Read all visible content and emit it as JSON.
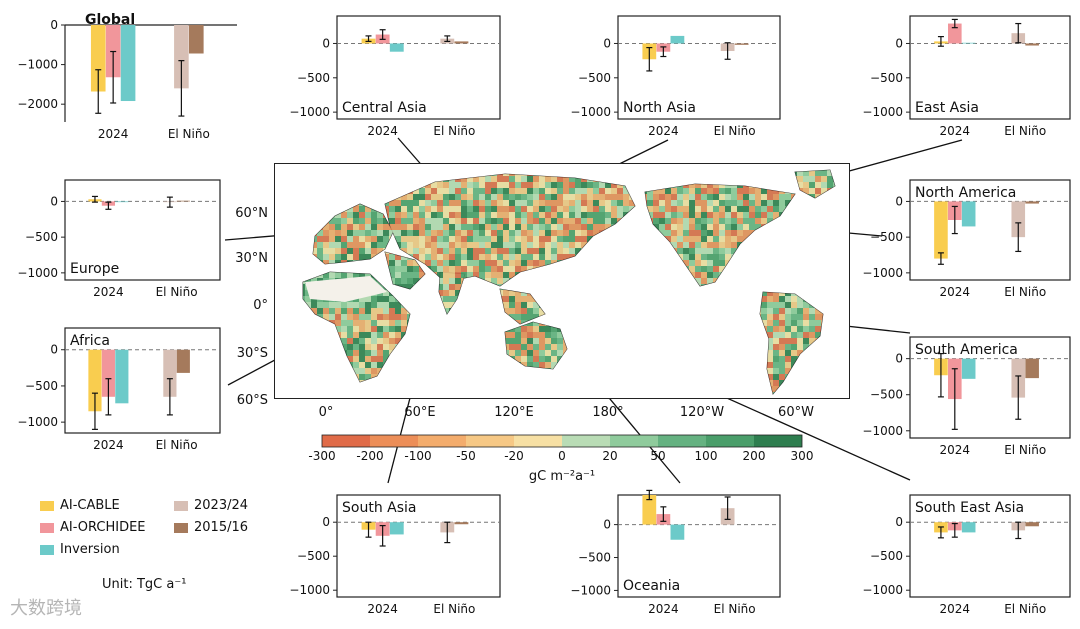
{
  "series": [
    {
      "key": "ai_cable",
      "name": "AI-CABLE",
      "color": "#f9cd4f"
    },
    {
      "key": "ai_orchidee",
      "name": "AI-ORCHIDEE",
      "color": "#f1969b"
    },
    {
      "key": "inversion",
      "name": "Inversion",
      "color": "#6ccac9"
    },
    {
      "key": "el_2023_24",
      "name": "2023/24",
      "color": "#d7bfb5"
    },
    {
      "key": "el_2015_16",
      "name": "2015/16",
      "color": "#a57a5c"
    }
  ],
  "unit_label": "Unit: TgC a⁻¹",
  "colorbar": {
    "ticks": [
      "-300",
      "-200",
      "-100",
      "-50",
      "-20",
      "0",
      "20",
      "50",
      "100",
      "200",
      "300"
    ],
    "label": "gC m⁻²a⁻¹",
    "colors": [
      "#e06b48",
      "#ec8e58",
      "#f3ac6c",
      "#f6c885",
      "#f7e0a4",
      "#b9dcb5",
      "#8fcb9c",
      "#65b281",
      "#4a9e6a",
      "#2e7e4f"
    ]
  },
  "map": {
    "lat_labels": [
      "60°N",
      "30°N",
      "0°",
      "30°S",
      "60°S"
    ],
    "lon_labels": [
      "0°",
      "60°E",
      "120°E",
      "180°",
      "120°W",
      "60°W"
    ]
  },
  "watermark": "大数跨境",
  "chart_data": [
    {
      "type": "bar",
      "title": "Global",
      "categories": [
        "2024",
        "El Niño"
      ],
      "yticks": [
        0,
        -1000,
        -2000
      ],
      "ylim": [
        -2450,
        0
      ],
      "series": [
        {
          "name": "AI-CABLE",
          "values": [
            -1680,
            null
          ],
          "errors": [
            550,
            null
          ]
        },
        {
          "name": "AI-ORCHIDEE",
          "values": [
            -1320,
            null
          ],
          "errors": [
            650,
            null
          ]
        },
        {
          "name": "Inversion",
          "values": [
            -1920,
            null
          ],
          "errors": [
            null,
            null
          ]
        },
        {
          "name": "2023/24",
          "values": [
            null,
            -1600
          ],
          "errors": [
            null,
            700
          ]
        },
        {
          "name": "2015/16",
          "values": [
            null,
            -720
          ],
          "errors": [
            null,
            null
          ]
        }
      ]
    },
    {
      "type": "bar",
      "title": "Central Asia",
      "categories": [
        "2024",
        "El Niño"
      ],
      "yticks": [
        0,
        -500,
        -1000
      ],
      "ylim": [
        -1100,
        400
      ],
      "series": [
        {
          "name": "AI-CABLE",
          "values": [
            70,
            null
          ],
          "errors": [
            40,
            null
          ]
        },
        {
          "name": "AI-ORCHIDEE",
          "values": [
            130,
            null
          ],
          "errors": [
            70,
            null
          ]
        },
        {
          "name": "Inversion",
          "values": [
            -120,
            null
          ],
          "errors": [
            null,
            null
          ]
        },
        {
          "name": "2023/24",
          "values": [
            null,
            70
          ],
          "errors": [
            null,
            40
          ]
        },
        {
          "name": "2015/16",
          "values": [
            null,
            30
          ],
          "errors": [
            null,
            null
          ]
        }
      ]
    },
    {
      "type": "bar",
      "title": "North Asia",
      "categories": [
        "2024",
        "El Niño"
      ],
      "yticks": [
        0,
        -500,
        -1000
      ],
      "ylim": [
        -1100,
        400
      ],
      "series": [
        {
          "name": "AI-CABLE",
          "values": [
            -230,
            null
          ],
          "errors": [
            170,
            null
          ]
        },
        {
          "name": "AI-ORCHIDEE",
          "values": [
            -120,
            null
          ],
          "errors": [
            70,
            null
          ]
        },
        {
          "name": "Inversion",
          "values": [
            110,
            null
          ],
          "errors": [
            null,
            null
          ]
        },
        {
          "name": "2023/24",
          "values": [
            null,
            -110
          ],
          "errors": [
            null,
            120
          ]
        },
        {
          "name": "2015/16",
          "values": [
            null,
            -20
          ],
          "errors": [
            null,
            null
          ]
        }
      ]
    },
    {
      "type": "bar",
      "title": "East Asia",
      "categories": [
        "2024",
        "El Niño"
      ],
      "yticks": [
        0,
        -500,
        -1000
      ],
      "ylim": [
        -1100,
        400
      ],
      "series": [
        {
          "name": "AI-CABLE",
          "values": [
            30,
            null
          ],
          "errors": [
            70,
            null
          ]
        },
        {
          "name": "AI-ORCHIDEE",
          "values": [
            290,
            null
          ],
          "errors": [
            60,
            null
          ]
        },
        {
          "name": "Inversion",
          "values": [
            10,
            null
          ],
          "errors": [
            null,
            null
          ]
        },
        {
          "name": "2023/24",
          "values": [
            null,
            150
          ],
          "errors": [
            null,
            140
          ]
        },
        {
          "name": "2015/16",
          "values": [
            null,
            -30
          ],
          "errors": [
            null,
            null
          ]
        }
      ]
    },
    {
      "type": "bar",
      "title": "Europe",
      "categories": [
        "2024",
        "El Niño"
      ],
      "yticks": [
        0,
        -500,
        -1000
      ],
      "ylim": [
        -1100,
        300
      ],
      "series": [
        {
          "name": "AI-CABLE",
          "values": [
            30,
            null
          ],
          "errors": [
            40,
            null
          ]
        },
        {
          "name": "AI-ORCHIDEE",
          "values": [
            -60,
            null
          ],
          "errors": [
            50,
            null
          ]
        },
        {
          "name": "Inversion",
          "values": [
            -10,
            null
          ],
          "errors": [
            null,
            null
          ]
        },
        {
          "name": "2023/24",
          "values": [
            null,
            -10
          ],
          "errors": [
            null,
            70
          ]
        },
        {
          "name": "2015/16",
          "values": [
            null,
            10
          ],
          "errors": [
            null,
            null
          ]
        }
      ]
    },
    {
      "type": "bar",
      "title": "North America",
      "categories": [
        "2024",
        "El Niño"
      ],
      "yticks": [
        0,
        -500,
        -1000
      ],
      "ylim": [
        -1100,
        300
      ],
      "series": [
        {
          "name": "AI-CABLE",
          "values": [
            -800,
            null
          ],
          "errors": [
            80,
            null
          ]
        },
        {
          "name": "AI-ORCHIDEE",
          "values": [
            -260,
            null
          ],
          "errors": [
            190,
            null
          ]
        },
        {
          "name": "Inversion",
          "values": [
            -350,
            null
          ],
          "errors": [
            null,
            null
          ]
        },
        {
          "name": "2023/24",
          "values": [
            null,
            -500
          ],
          "errors": [
            null,
            200
          ]
        },
        {
          "name": "2015/16",
          "values": [
            null,
            -30
          ],
          "errors": [
            null,
            null
          ]
        }
      ]
    },
    {
      "type": "bar",
      "title": "Africa",
      "categories": [
        "2024",
        "El Niño"
      ],
      "yticks": [
        0,
        -500,
        -1000
      ],
      "ylim": [
        -1150,
        300
      ],
      "series": [
        {
          "name": "AI-CABLE",
          "values": [
            -850,
            null
          ],
          "errors": [
            250,
            null
          ]
        },
        {
          "name": "AI-ORCHIDEE",
          "values": [
            -650,
            null
          ],
          "errors": [
            250,
            null
          ]
        },
        {
          "name": "Inversion",
          "values": [
            -740,
            null
          ],
          "errors": [
            null,
            null
          ]
        },
        {
          "name": "2023/24",
          "values": [
            null,
            -650
          ],
          "errors": [
            null,
            250
          ]
        },
        {
          "name": "2015/16",
          "values": [
            null,
            -320
          ],
          "errors": [
            null,
            null
          ]
        }
      ]
    },
    {
      "type": "bar",
      "title": "South America",
      "categories": [
        "2024",
        "El Niño"
      ],
      "yticks": [
        0,
        -500,
        -1000
      ],
      "ylim": [
        -1100,
        300
      ],
      "series": [
        {
          "name": "AI-CABLE",
          "values": [
            -230,
            null
          ],
          "errors": [
            300,
            null
          ]
        },
        {
          "name": "AI-ORCHIDEE",
          "values": [
            -560,
            null
          ],
          "errors": [
            420,
            null
          ]
        },
        {
          "name": "Inversion",
          "values": [
            -280,
            null
          ],
          "errors": [
            null,
            null
          ]
        },
        {
          "name": "2023/24",
          "values": [
            null,
            -540
          ],
          "errors": [
            null,
            300
          ]
        },
        {
          "name": "2015/16",
          "values": [
            null,
            -270
          ],
          "errors": [
            null,
            null
          ]
        }
      ]
    },
    {
      "type": "bar",
      "title": "South Asia",
      "categories": [
        "2024",
        "El Niño"
      ],
      "yticks": [
        0,
        -500,
        -1000
      ],
      "ylim": [
        -1100,
        400
      ],
      "series": [
        {
          "name": "AI-CABLE",
          "values": [
            -110,
            null
          ],
          "errors": [
            110,
            null
          ]
        },
        {
          "name": "AI-ORCHIDEE",
          "values": [
            -200,
            null
          ],
          "errors": [
            150,
            null
          ]
        },
        {
          "name": "Inversion",
          "values": [
            -180,
            null
          ],
          "errors": [
            null,
            null
          ]
        },
        {
          "name": "2023/24",
          "values": [
            null,
            -150
          ],
          "errors": [
            null,
            150
          ]
        },
        {
          "name": "2015/16",
          "values": [
            null,
            -30
          ],
          "errors": [
            null,
            null
          ]
        }
      ]
    },
    {
      "type": "bar",
      "title": "Oceania",
      "categories": [
        "2024",
        "El Niño"
      ],
      "yticks": [
        0,
        -500,
        -1000
      ],
      "ylim": [
        -1100,
        450
      ],
      "series": [
        {
          "name": "AI-CABLE",
          "values": [
            450,
            null
          ],
          "errors": [
            70,
            null
          ]
        },
        {
          "name": "AI-ORCHIDEE",
          "values": [
            160,
            null
          ],
          "errors": [
            110,
            null
          ]
        },
        {
          "name": "Inversion",
          "values": [
            -230,
            null
          ],
          "errors": [
            null,
            null
          ]
        },
        {
          "name": "2023/24",
          "values": [
            null,
            250
          ],
          "errors": [
            null,
            170
          ]
        },
        {
          "name": "2015/16",
          "values": [
            null,
            null
          ],
          "errors": [
            null,
            null
          ]
        }
      ]
    },
    {
      "type": "bar",
      "title": "South East Asia",
      "categories": [
        "2024",
        "El Niño"
      ],
      "yticks": [
        0,
        -500,
        -1000
      ],
      "ylim": [
        -1100,
        400
      ],
      "series": [
        {
          "name": "AI-CABLE",
          "values": [
            -150,
            null
          ],
          "errors": [
            80,
            null
          ]
        },
        {
          "name": "AI-ORCHIDEE",
          "values": [
            -120,
            null
          ],
          "errors": [
            100,
            null
          ]
        },
        {
          "name": "Inversion",
          "values": [
            -150,
            null
          ],
          "errors": [
            null,
            null
          ]
        },
        {
          "name": "2023/24",
          "values": [
            null,
            -120
          ],
          "errors": [
            null,
            120
          ]
        },
        {
          "name": "2015/16",
          "values": [
            null,
            -60
          ],
          "errors": [
            null,
            null
          ]
        }
      ]
    }
  ]
}
